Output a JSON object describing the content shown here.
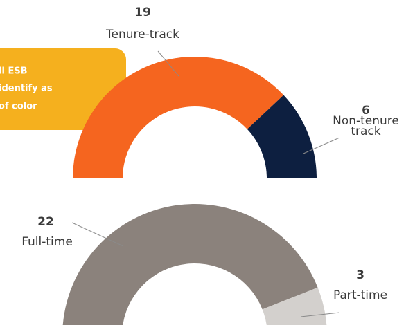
{
  "callout": {
    "lines": [
      "ll ESB",
      "identify as",
      "of color"
    ]
  },
  "chart_data": [
    {
      "type": "semi-donut",
      "categories": [
        "Tenure-track",
        "Non-tenure track"
      ],
      "values": [
        19,
        6
      ],
      "colors": [
        "#f5651f",
        "#0d1f40"
      ]
    },
    {
      "type": "semi-donut",
      "categories": [
        "Full-time",
        "Part-time"
      ],
      "values": [
        22,
        3
      ],
      "colors": [
        "#8b827c",
        "#d3d0cd"
      ]
    }
  ]
}
